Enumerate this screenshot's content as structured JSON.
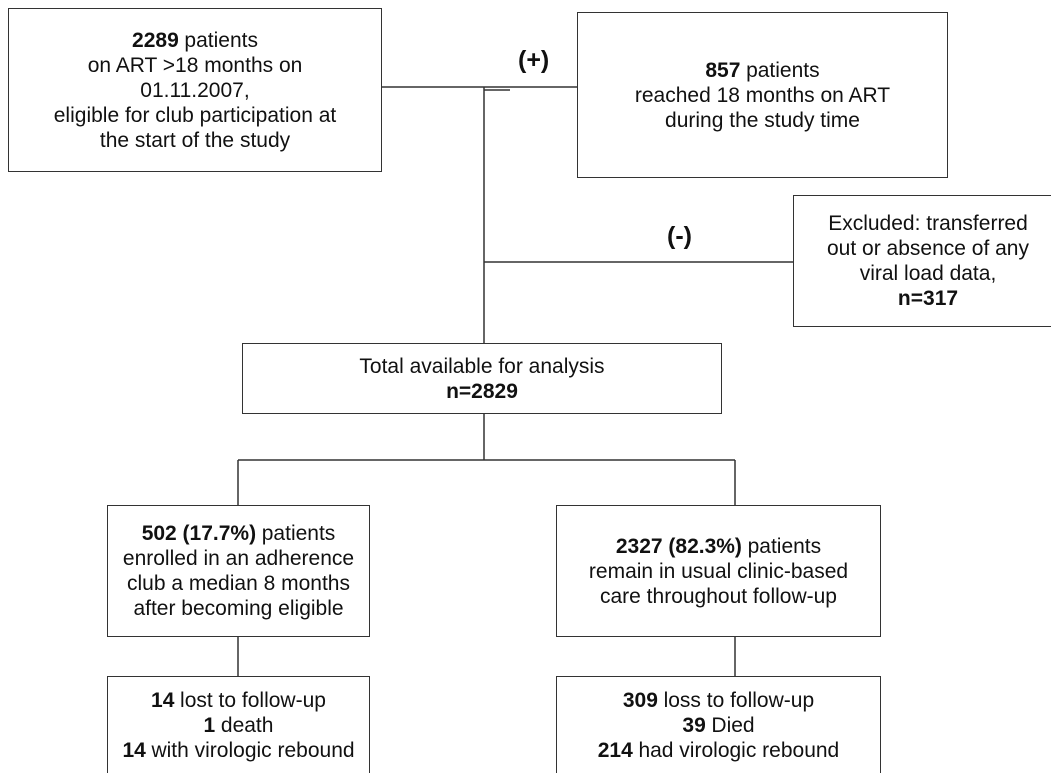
{
  "nodes": [
    {
      "lines": [
        {
          "bold": "2289",
          "text": "patients"
        },
        {
          "text": "on ART >18 months on"
        },
        {
          "text": "01.11.2007,"
        },
        {
          "text": "eligible for club participation at"
        },
        {
          "text": "the start of the study"
        }
      ]
    },
    {
      "lines": [
        {
          "bold": "857",
          "text": "patients"
        },
        {
          "text": "reached 18 months on ART"
        },
        {
          "text": "during the study time"
        }
      ]
    },
    {
      "lines": [
        {
          "text": "Excluded: transferred"
        },
        {
          "text": "out or absence of any"
        },
        {
          "text": "viral load data,"
        },
        {
          "bold": "n=317"
        }
      ]
    },
    {
      "lines": [
        {
          "text": "Total available for analysis"
        },
        {
          "bold": "n=2829"
        }
      ]
    },
    {
      "lines": [
        {
          "bold": "502 (17.7%)",
          "text": "patients"
        },
        {
          "text": "enrolled in an adherence"
        },
        {
          "text": "club a median 8 months"
        },
        {
          "text": "after becoming eligible"
        }
      ]
    },
    {
      "lines": [
        {
          "bold": "2327 (82.3%)",
          "text": "patients"
        },
        {
          "text": "remain in usual clinic-based"
        },
        {
          "text": "care throughout follow-up"
        }
      ]
    },
    {
      "lines": [
        {
          "bold": "14",
          "text": "lost to follow-up"
        },
        {
          "bold": "1",
          "text": "death"
        },
        {
          "bold": "14",
          "text": "with virologic rebound"
        }
      ]
    },
    {
      "lines": [
        {
          "bold": "309",
          "text": "loss to follow-up"
        },
        {
          "bold": "39",
          "text": "Died"
        },
        {
          "bold": "214",
          "text": "had virologic rebound"
        }
      ]
    }
  ],
  "labels": {
    "plus": "(+)",
    "minus": "(-)"
  }
}
